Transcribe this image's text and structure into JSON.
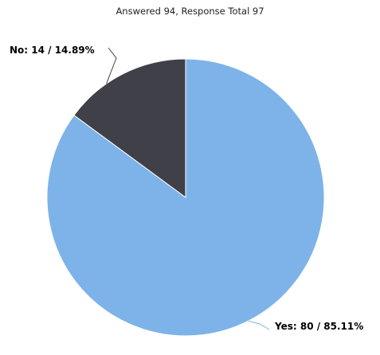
{
  "chart_data": {
    "type": "pie",
    "title": "Answered 94, Response Total 97",
    "slices": [
      {
        "name": "Yes",
        "value": 80,
        "percent": 85.11,
        "label": "Yes: 80 / 85.11%",
        "color": "#7db3e8"
      },
      {
        "name": "No",
        "value": 14,
        "percent": 14.89,
        "label": "No: 14 / 14.89%",
        "color": "#404048"
      }
    ]
  }
}
